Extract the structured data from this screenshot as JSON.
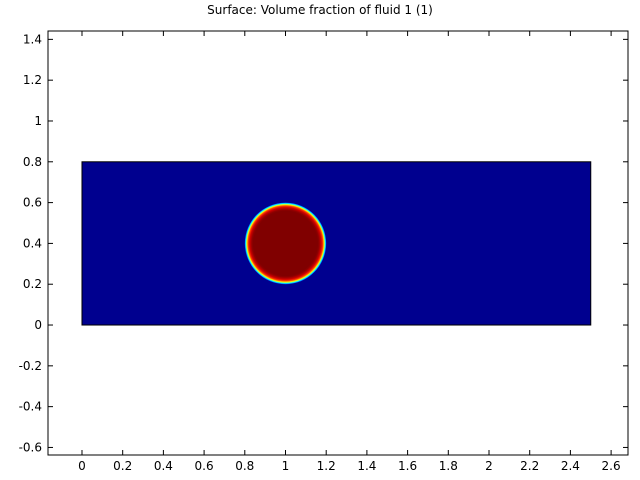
{
  "chart_data": {
    "type": "surface",
    "title": "Surface: Volume fraction of fluid 1 (1)",
    "xlim": [
      -0.167,
      2.683
    ],
    "ylim": [
      -0.637,
      1.441
    ],
    "xticks": [
      0,
      0.2,
      0.4,
      0.6,
      0.8,
      1,
      1.2,
      1.4,
      1.6,
      1.8,
      2,
      2.2,
      2.4,
      2.6
    ],
    "yticks": [
      -0.6,
      -0.4,
      -0.2,
      0,
      0.2,
      0.4,
      0.6,
      0.8,
      1,
      1.2,
      1.4
    ],
    "domain": {
      "x": [
        0,
        2.5
      ],
      "y": [
        0,
        0.8
      ],
      "color": "#00008f"
    },
    "circle": {
      "center": [
        1,
        0.4
      ],
      "radius": 0.2,
      "color": "#800000"
    }
  }
}
